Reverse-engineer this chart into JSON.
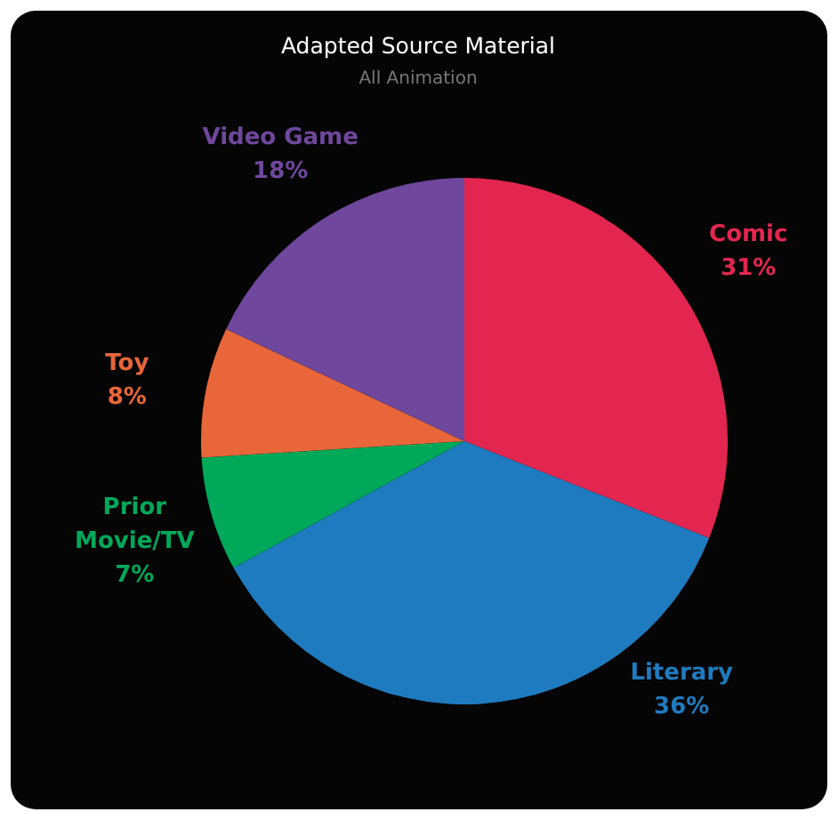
{
  "chart_data": {
    "type": "pie",
    "title": "Adapted Source Material",
    "subtitle": "All Animation",
    "categories": [
      "Comic",
      "Literary",
      "Prior Movie/TV",
      "Toy",
      "Video Game"
    ],
    "values": [
      31,
      36,
      7,
      8,
      18
    ],
    "value_labels": [
      "31%",
      "36%",
      "7%",
      "8%",
      "18%"
    ],
    "colors": [
      "#e2264f",
      "#1f7bbf",
      "#00a85a",
      "#e8663a",
      "#6f479c"
    ]
  }
}
